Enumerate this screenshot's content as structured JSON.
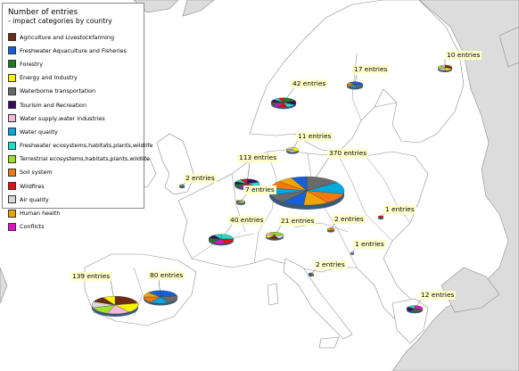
{
  "colors": {
    "sea": "#ffffff",
    "land_other": "#dcdcdc",
    "land_eu": "#ffffff",
    "border": "#8c8c8c",
    "callout_bg": "#ffffcc",
    "pie_side": "#3a5a7a"
  },
  "legend": {
    "title": "Number of entries",
    "subtitle": "- impact categories by country",
    "items": [
      {
        "label": "Agriculture and Livestockfarming",
        "color": "#6e2c12"
      },
      {
        "label": "Freshwater Aquaculture and Fisheries",
        "color": "#1560d8"
      },
      {
        "label": "Forestry",
        "color": "#1e7a1e"
      },
      {
        "label": "Energy and Industry",
        "color": "#f5f500"
      },
      {
        "label": "Waterborne transportation",
        "color": "#6a6a6a"
      },
      {
        "label": "Tourism and Recreation",
        "color": "#3a0a5e"
      },
      {
        "label": "Water supply,water industries",
        "color": "#f4b8d8"
      },
      {
        "label": "Water quality",
        "color": "#00a8e0"
      },
      {
        "label": "Freshwater ecosystems,habitats,plants,wildlife",
        "color": "#18e0c8"
      },
      {
        "label": "Terrestrial ecosystems,habitats,plants,wildlife",
        "color": "#9ee02a"
      },
      {
        "label": "Soil system",
        "color": "#f07a10"
      },
      {
        "label": "Wildfires",
        "color": "#e01010"
      },
      {
        "label": "Air quality",
        "color": "#d8d8d8"
      },
      {
        "label": "Human health",
        "color": "#f0a400"
      },
      {
        "label": "Conflicts",
        "color": "#e010c8"
      }
    ]
  },
  "countries": [
    {
      "id": "finland",
      "label": "10 entries",
      "entries": 10,
      "slices": [
        3,
        2,
        2,
        2,
        1
      ]
    },
    {
      "id": "sweden",
      "label": "17 entries",
      "entries": 17,
      "slices": [
        5,
        3,
        3,
        2,
        2,
        2
      ]
    },
    {
      "id": "norway",
      "label": "42 entries",
      "entries": 42,
      "slices": [
        8,
        6,
        5,
        5,
        4,
        4,
        4,
        3,
        3
      ]
    },
    {
      "id": "denmark",
      "label": "11 entries",
      "entries": 11,
      "slices": [
        4,
        3,
        2,
        2
      ]
    },
    {
      "id": "germany",
      "label": "370 entries",
      "entries": 370,
      "slices": [
        55,
        50,
        45,
        40,
        35,
        35,
        30,
        30,
        25,
        25
      ]
    },
    {
      "id": "netherlands",
      "label": "113 entries",
      "entries": 113,
      "slices": [
        22,
        18,
        16,
        14,
        12,
        11,
        10,
        10
      ]
    },
    {
      "id": "belgium",
      "label": "7 entries",
      "entries": 7,
      "slices": [
        2,
        2,
        1,
        1,
        1
      ]
    },
    {
      "id": "uk",
      "label": "2 entries",
      "entries": 2,
      "slices": [
        1,
        1
      ]
    },
    {
      "id": "france",
      "label": "40 entries",
      "entries": 40,
      "slices": [
        10,
        8,
        7,
        6,
        5,
        4
      ]
    },
    {
      "id": "switzerland",
      "label": "21 entries",
      "entries": 21,
      "slices": [
        5,
        4,
        4,
        3,
        3,
        2
      ]
    },
    {
      "id": "austria",
      "label": "2 entries",
      "entries": 2,
      "slices": [
        1,
        1
      ]
    },
    {
      "id": "slovakia",
      "label": "1 entries",
      "entries": 1,
      "slices": [
        1
      ]
    },
    {
      "id": "hungary",
      "label": "1 entries",
      "entries": 1,
      "slices": [
        1
      ]
    },
    {
      "id": "italy",
      "label": "2 entries",
      "entries": 2,
      "slices": [
        1,
        1
      ]
    },
    {
      "id": "greece",
      "label": "12 entries",
      "entries": 12,
      "slices": [
        4,
        3,
        3,
        2
      ]
    },
    {
      "id": "portugal",
      "label": "139 entries",
      "entries": 139,
      "slices": [
        30,
        25,
        22,
        20,
        16,
        14,
        12
      ]
    },
    {
      "id": "spain",
      "label": "80 entries",
      "entries": 80,
      "slices": [
        18,
        16,
        14,
        12,
        10,
        10
      ]
    }
  ]
}
